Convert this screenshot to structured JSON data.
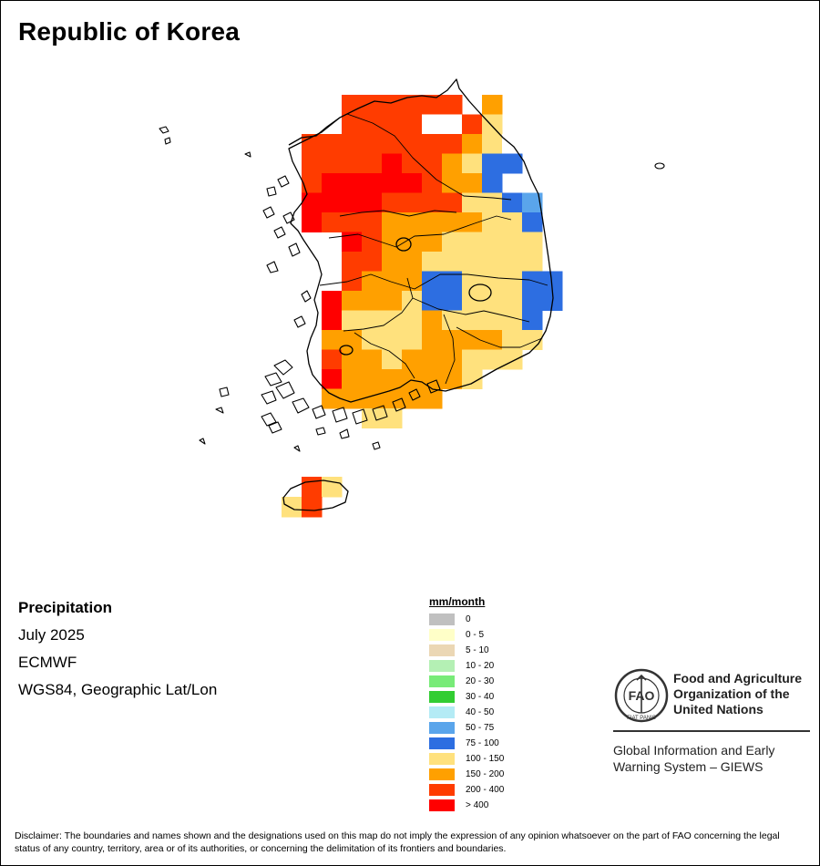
{
  "title": "Republic of Korea",
  "info": {
    "variable": "Precipitation",
    "period": "July 2025",
    "source": "ECMWF",
    "projection": "WGS84, Geographic Lat/Lon"
  },
  "legend": {
    "title": "mm/month",
    "items": [
      {
        "label": "0",
        "color": "#c0c0c0"
      },
      {
        "label": "0 - 5",
        "color": "#ffffc8"
      },
      {
        "label": "5 - 10",
        "color": "#ebd7b4"
      },
      {
        "label": "10 - 20",
        "color": "#b4f0b4"
      },
      {
        "label": "20 - 30",
        "color": "#78eb78"
      },
      {
        "label": "30 - 40",
        "color": "#32cd32"
      },
      {
        "label": "40 - 50",
        "color": "#b4ebf5"
      },
      {
        "label": "50 - 75",
        "color": "#5aa5eb"
      },
      {
        "label": "75 - 100",
        "color": "#2d6ee1"
      },
      {
        "label": "100 - 150",
        "color": "#ffe17d"
      },
      {
        "label": "150 - 200",
        "color": "#ffa000"
      },
      {
        "label": "200 - 400",
        "color": "#ff3c00"
      },
      {
        "label": "> 400",
        "color": "#ff0000"
      }
    ]
  },
  "grid_classes": {
    "d": "#ff3c00",
    "r": "#ff0000",
    "o": "#ffa000",
    "y": "#ffe17d",
    "b": "#2d6ee1",
    "l": "#5aa5eb",
    "w": "#ffffff"
  },
  "precip_grid_rows": [
    ".....dddddd.o...",
    ".....ddddwwdy...",
    "...ddddddddoyw..",
    "...ddddrddoybb..",
    "...drrrrrdoob...",
    "...rrrrddddyybl.",
    "...rdddoooooyyb.",
    ".....rdoooyyyyy.",
    ".....ddooyyyyyy.",
    ".....dooobbyyybb",
    "....roooybbyyybb",
    "....ryyyyoyyyyb.",
    "....ooyyyooooyy.",
    "....dooyoooyyy..",
    "....rooooooy....",
    "....oooooo......",
    "......yy........"
  ],
  "jeju_grid_rows": [
    ".dy",
    "yd."
  ],
  "fao": {
    "logo_text": "FAO",
    "logo_motto": "FIAT PANIS",
    "org_name": [
      "Food and Agriculture",
      "Organization of the",
      "United Nations"
    ],
    "system_name": [
      "Global Information and Early",
      "Warning System – GIEWS"
    ]
  },
  "disclaimer": "Disclaimer: The boundaries and names shown and the designations used on this map do not imply the expression of any opinion whatsoever on the part of FAO concerning the legal status of any country, territory, area or of its authorities, or concerning the delimitation of its frontiers and boundaries."
}
